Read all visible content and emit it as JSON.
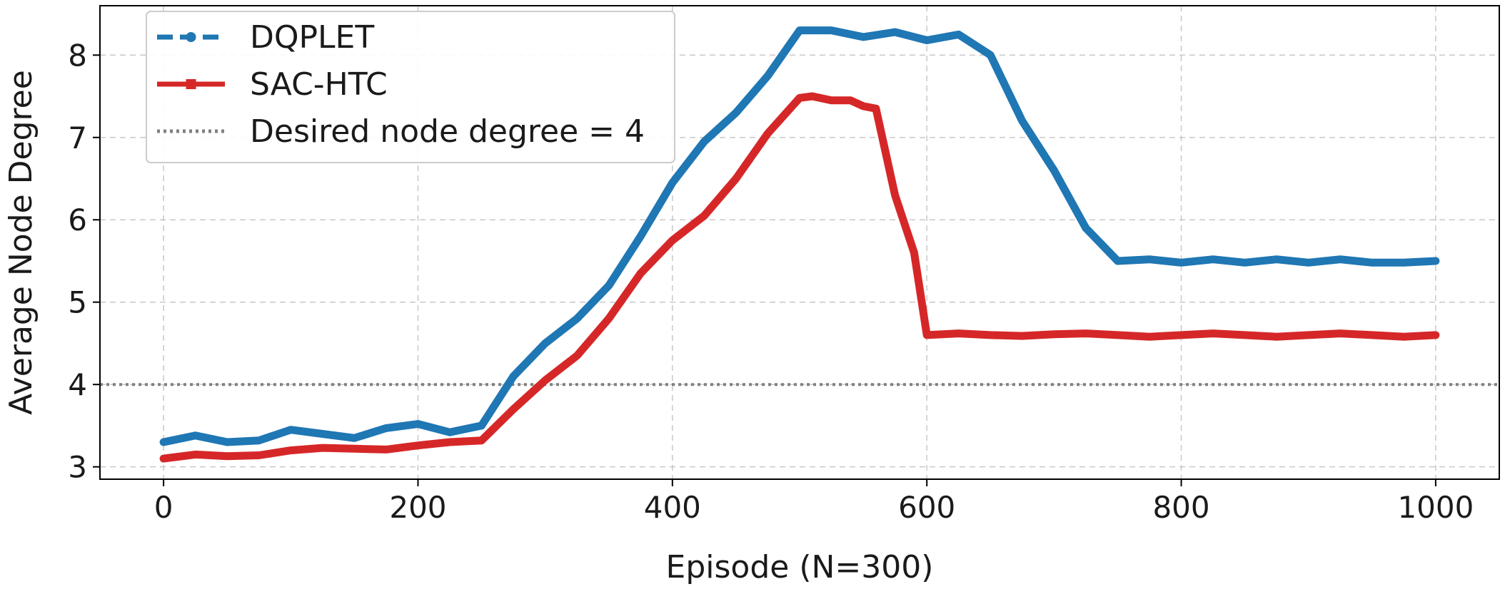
{
  "chart_data": {
    "type": "line",
    "title": "",
    "xlabel": "Episode (N=300)",
    "ylabel": "Average Node Degree",
    "xlim": [
      -50,
      1050
    ],
    "ylim": [
      2.85,
      8.6
    ],
    "xticks": [
      0,
      200,
      400,
      600,
      800,
      1000
    ],
    "yticks": [
      3,
      4,
      5,
      6,
      7,
      8
    ],
    "xtick_labels": [
      "0",
      "200",
      "400",
      "600",
      "800",
      "1000"
    ],
    "ytick_labels": [
      "3",
      "4",
      "5",
      "6",
      "7",
      "8"
    ],
    "grid": true,
    "legend_position": "top-left",
    "series": [
      {
        "name": "DQPLET",
        "color": "#1f77b4",
        "style": "dashed-dot-marker",
        "x": [
          0,
          25,
          50,
          75,
          100,
          125,
          150,
          175,
          200,
          225,
          250,
          275,
          300,
          325,
          350,
          375,
          400,
          425,
          450,
          475,
          500,
          525,
          550,
          575,
          600,
          625,
          650,
          675,
          700,
          725,
          750,
          775,
          800,
          825,
          850,
          875,
          900,
          925,
          950,
          975,
          1000
        ],
        "y": [
          3.3,
          3.38,
          3.3,
          3.32,
          3.45,
          3.4,
          3.35,
          3.47,
          3.52,
          3.42,
          3.5,
          4.1,
          4.5,
          4.8,
          5.2,
          5.8,
          6.45,
          6.95,
          7.3,
          7.75,
          8.3,
          8.3,
          8.22,
          8.28,
          8.18,
          8.25,
          8.0,
          7.2,
          6.6,
          5.9,
          5.5,
          5.52,
          5.48,
          5.52,
          5.48,
          5.52,
          5.48,
          5.52,
          5.48,
          5.48,
          5.5
        ]
      },
      {
        "name": "SAC-HTC",
        "color": "#d62728",
        "style": "solid-square-marker",
        "x": [
          0,
          25,
          50,
          75,
          100,
          125,
          150,
          175,
          200,
          225,
          250,
          275,
          300,
          325,
          350,
          375,
          400,
          425,
          450,
          475,
          500,
          510,
          525,
          540,
          550,
          560,
          575,
          590,
          600,
          625,
          650,
          675,
          700,
          725,
          750,
          775,
          800,
          825,
          850,
          875,
          900,
          925,
          950,
          975,
          1000
        ],
        "y": [
          3.1,
          3.15,
          3.13,
          3.14,
          3.2,
          3.23,
          3.22,
          3.21,
          3.26,
          3.3,
          3.32,
          3.7,
          4.05,
          4.35,
          4.8,
          5.35,
          5.75,
          6.05,
          6.5,
          7.05,
          7.48,
          7.5,
          7.45,
          7.45,
          7.38,
          7.35,
          6.3,
          5.6,
          4.6,
          4.62,
          4.6,
          4.59,
          4.61,
          4.62,
          4.6,
          4.58,
          4.6,
          4.62,
          4.6,
          4.58,
          4.6,
          4.62,
          4.6,
          4.58,
          4.6
        ]
      },
      {
        "name": "Desired node degree = 4",
        "color": "#808080",
        "style": "dotted",
        "hline": 4
      }
    ]
  }
}
